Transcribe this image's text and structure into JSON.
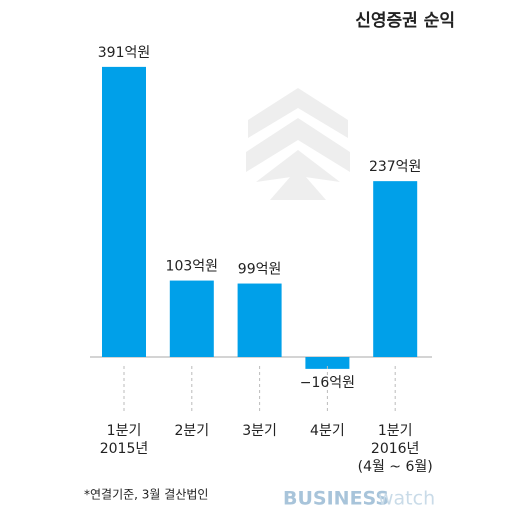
{
  "chart_data": {
    "type": "bar",
    "title": "신영증권 순익",
    "categories": [
      "1분기\n2015년",
      "2분기",
      "3분기",
      "4분기",
      "1분기\n2016년\n(4월 ~ 6월)"
    ],
    "values": [
      391,
      103,
      99,
      -16,
      237
    ],
    "value_labels": [
      "391억원",
      "103억원",
      "99억원",
      "−16억원",
      "237억원"
    ],
    "color": "#00a0e9",
    "note": "*연결기준, 3월 결산법인",
    "logo": [
      "BUSINESS",
      "watch"
    ]
  }
}
